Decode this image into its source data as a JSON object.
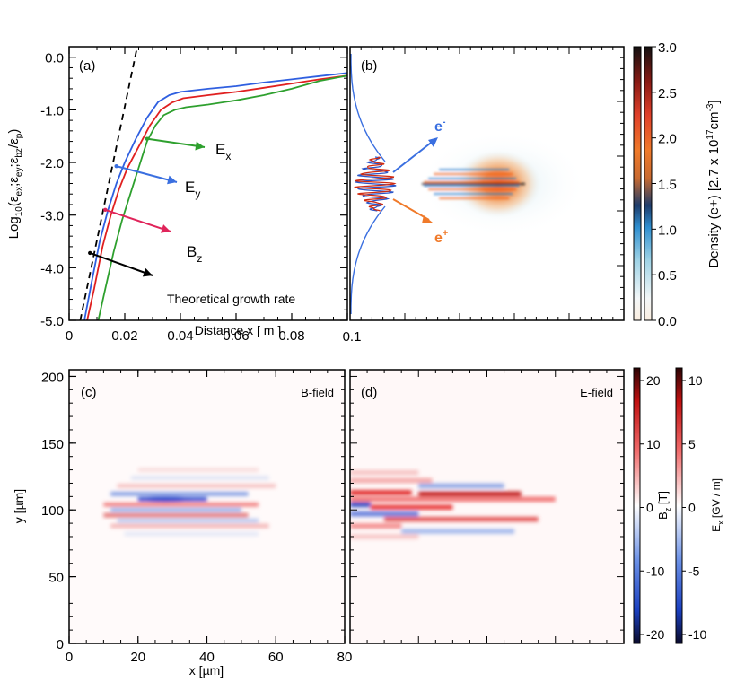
{
  "chart_data": [
    {
      "panel": "(a)",
      "type": "line",
      "xlabel": "Distance x [ m ]",
      "ylabel_main": "Log",
      "ylabel_sub": "10",
      "ylabel_rest": "(ε",
      "ylabel_full": "Log10(εex;εey;εbz/εp)",
      "xlim": [
        0,
        0.1
      ],
      "ylim": [
        -5.0,
        0.2
      ],
      "xticks": [
        "0",
        "0.02",
        "0.04",
        "0.06",
        "0.08",
        "0.1"
      ],
      "yticks": [
        "0.0",
        "-1.0",
        "-2.0",
        "-3.0",
        "-4.0",
        "-5.0"
      ],
      "series": [
        {
          "name": "Ey",
          "color": "#2f5fe0",
          "x": [
            0.0055,
            0.008,
            0.011,
            0.014,
            0.017,
            0.02,
            0.024,
            0.028,
            0.032,
            0.036,
            0.04,
            0.05,
            0.06,
            0.07,
            0.08,
            0.09,
            0.1
          ],
          "y": [
            -5.0,
            -4.3,
            -3.5,
            -2.9,
            -2.4,
            -2.0,
            -1.55,
            -1.15,
            -0.85,
            -0.72,
            -0.66,
            -0.6,
            -0.55,
            -0.48,
            -0.42,
            -0.36,
            -0.3
          ]
        },
        {
          "name": "Bz",
          "color": "#e02020",
          "x": [
            0.0065,
            0.009,
            0.012,
            0.015,
            0.018,
            0.021,
            0.025,
            0.029,
            0.033,
            0.037,
            0.041,
            0.05,
            0.06,
            0.07,
            0.08,
            0.09,
            0.1
          ],
          "y": [
            -5.0,
            -4.4,
            -3.6,
            -3.0,
            -2.5,
            -2.1,
            -1.7,
            -1.3,
            -1.0,
            -0.86,
            -0.78,
            -0.72,
            -0.66,
            -0.58,
            -0.5,
            -0.42,
            -0.35
          ]
        },
        {
          "name": "Ex",
          "color": "#2ea02e",
          "x": [
            0.0105,
            0.013,
            0.016,
            0.019,
            0.022,
            0.025,
            0.028,
            0.031,
            0.034,
            0.038,
            0.042,
            0.05,
            0.06,
            0.07,
            0.08,
            0.09,
            0.1
          ],
          "y": [
            -5.0,
            -4.4,
            -3.7,
            -3.1,
            -2.6,
            -2.1,
            -1.6,
            -1.3,
            -1.1,
            -1.0,
            -0.95,
            -0.9,
            -0.82,
            -0.72,
            -0.6,
            -0.45,
            -0.35
          ]
        },
        {
          "name": "Theoretical growth rate",
          "color": "#000000",
          "dashed": true,
          "x": [
            0.004,
            0.0245
          ],
          "y": [
            -5.0,
            0.2
          ]
        }
      ],
      "annotations": [
        {
          "label": "E",
          "sub": "x",
          "color": "#2ea02e",
          "x": 0.028,
          "y": -1.55
        },
        {
          "label": "E",
          "sub": "y",
          "color": "#3a6fe0",
          "x": 0.017,
          "y": -2.07
        },
        {
          "label": "B",
          "sub": "z",
          "color": "#e0245a",
          "x": 0.013,
          "y": -2.9
        },
        {
          "label": "Theoretical growth rate",
          "sub": "",
          "color": "#000000",
          "x": 0.0075,
          "y": -3.72
        }
      ]
    },
    {
      "panel": "(b)",
      "type": "heatmap",
      "xlim_label": "0.1",
      "colorbar": {
        "label": "Density (e+) [2.7 x 10",
        "label_exp": "17",
        "label_unit": "cm",
        "label_unit_exp": "-3",
        "label_end": "]",
        "label_full": "Density (e+) [2.7 x 10^17 cm^-3]",
        "range": [
          0.0,
          3.0
        ],
        "ticks": [
          "3.0",
          "2.5",
          "2.0",
          "1.5",
          "1.0",
          "0.5",
          "0.0"
        ]
      },
      "labels": [
        {
          "text": "e",
          "sup": "-",
          "color": "#3a6fe0"
        },
        {
          "text": "e",
          "sup": "+",
          "color": "#f07a2a"
        }
      ]
    },
    {
      "panel": "(c)",
      "type": "heatmap",
      "title": "B-field",
      "xlabel": "x [µm]",
      "ylabel": "y [µm]",
      "xlim": [
        0,
        80
      ],
      "ylim": [
        0,
        205
      ],
      "xticks": [
        "0",
        "20",
        "40",
        "60",
        "80"
      ],
      "yticks": [
        "0",
        "50",
        "100",
        "150",
        "200"
      ],
      "colorbar": {
        "label": "B",
        "label_sub": "z",
        "label_unit": " [T]",
        "range": [
          -20,
          20
        ],
        "ticks": [
          "20",
          "10",
          "0",
          "-10",
          "-20"
        ]
      }
    },
    {
      "panel": "(d)",
      "type": "heatmap",
      "title": "E-field",
      "colorbar": {
        "label": "E",
        "label_sub": "x",
        "label_unit": " [GV / m]",
        "range": [
          -10,
          10
        ],
        "ticks": [
          "10",
          "5",
          "0",
          "-5",
          "-10"
        ]
      }
    }
  ]
}
